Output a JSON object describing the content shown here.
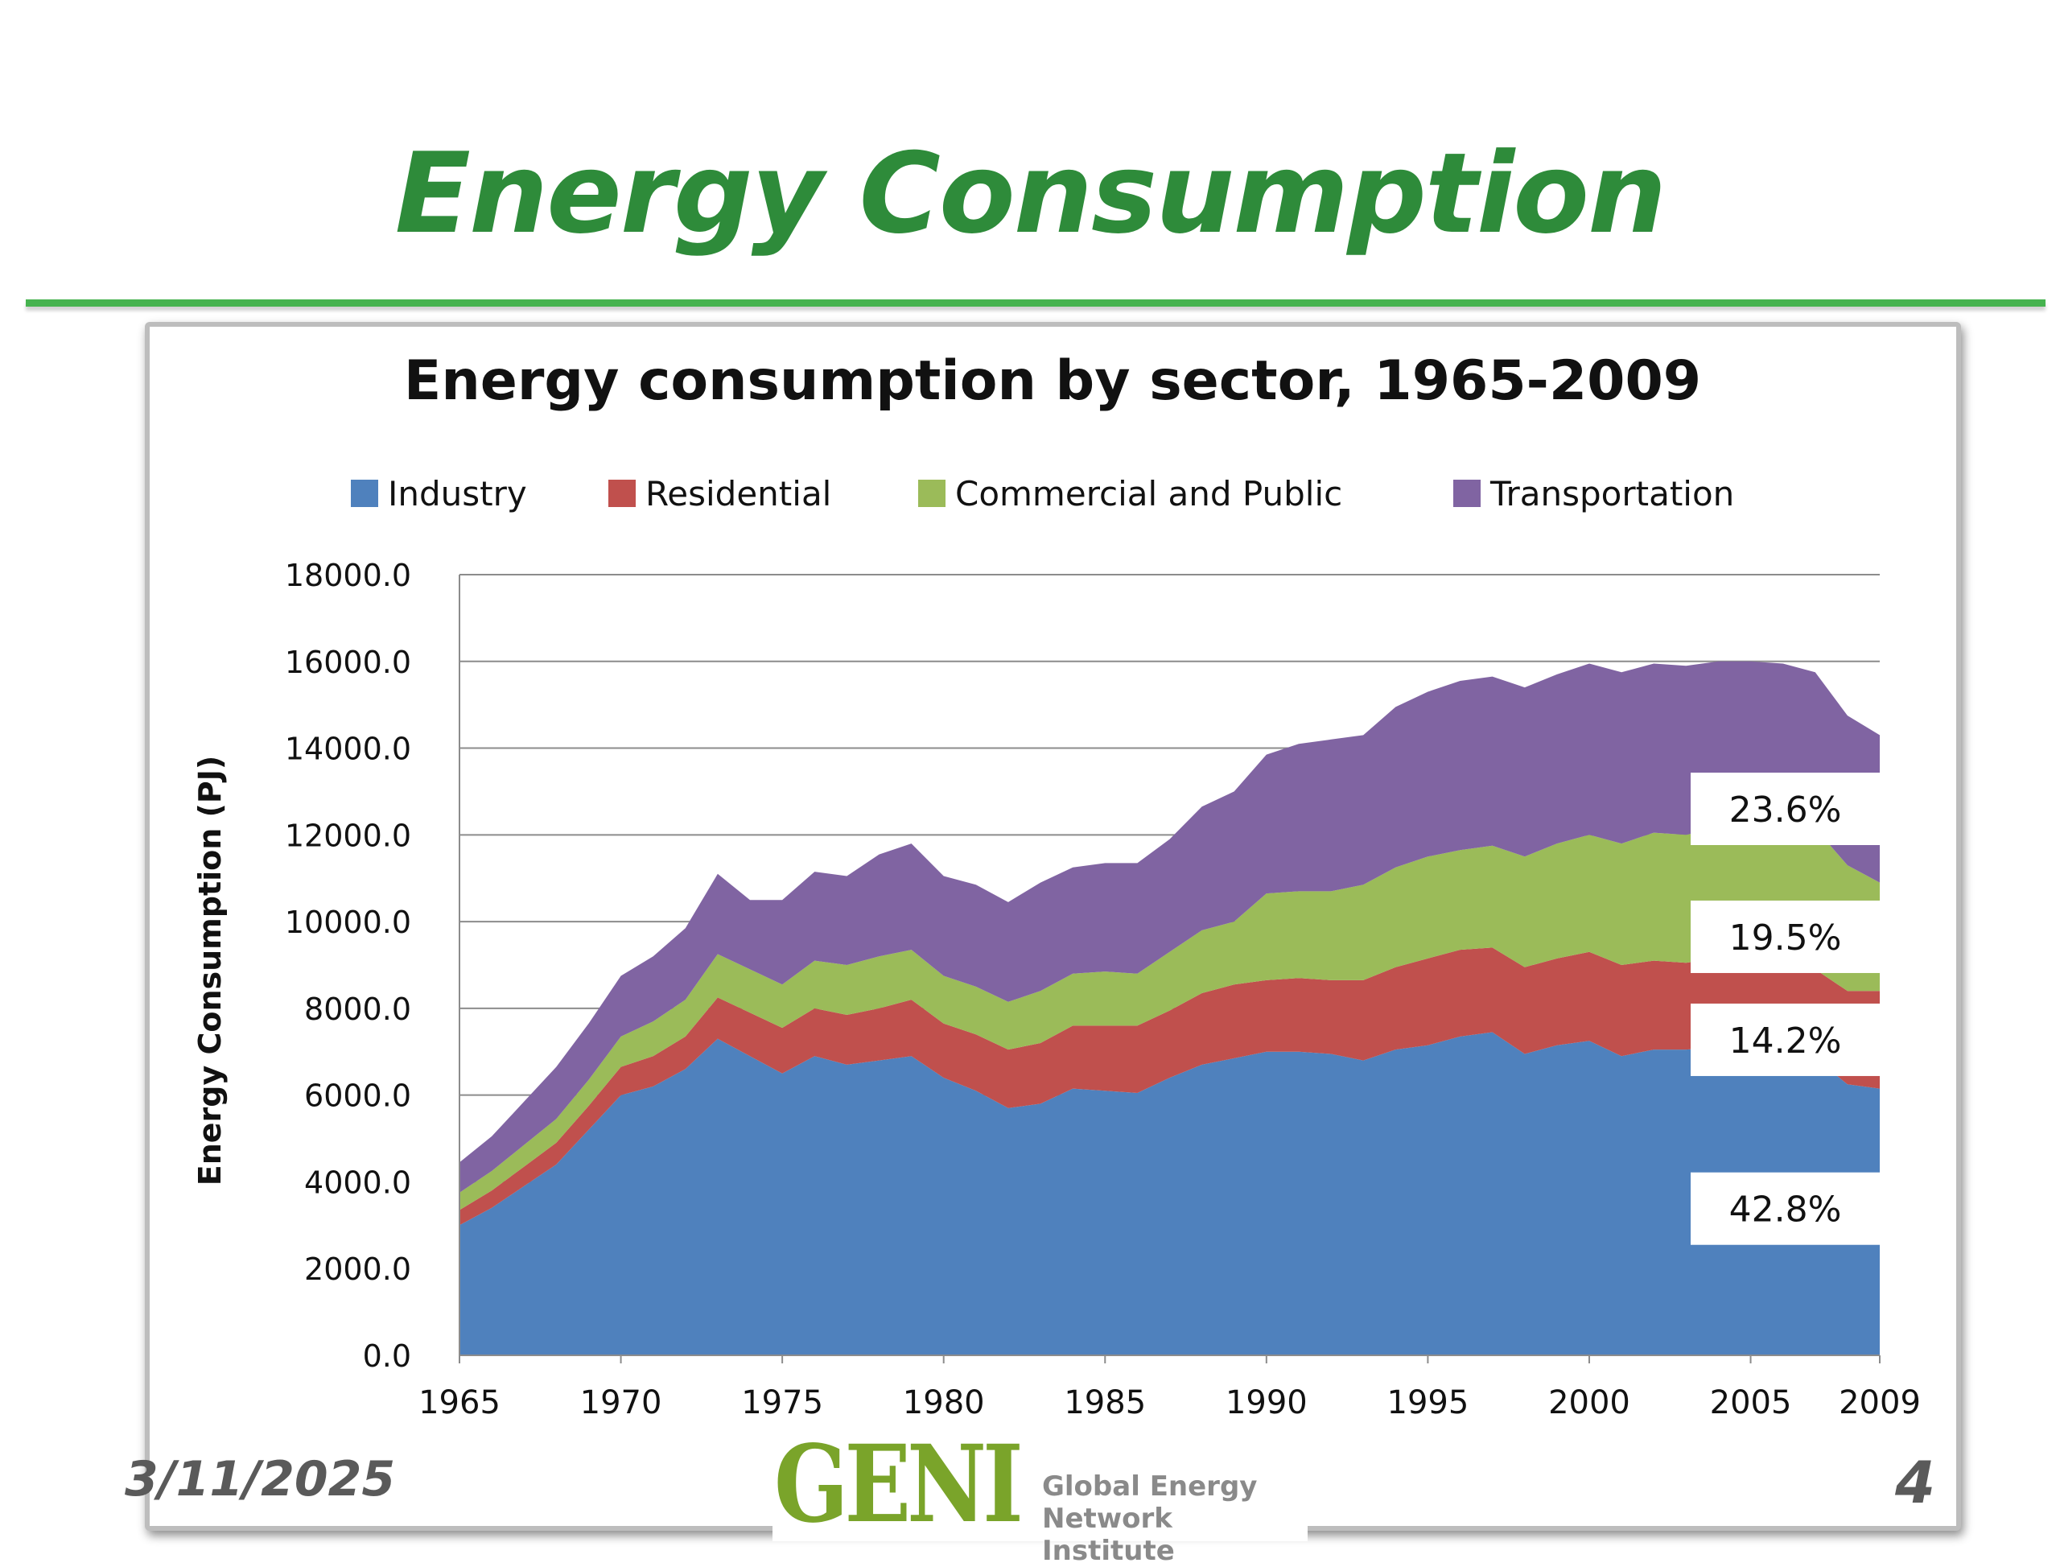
{
  "slide": {
    "title": "Energy Consumption",
    "date": "3/11/2025",
    "page": "4",
    "logo": {
      "mark": "GENI",
      "line1": "Global Energy",
      "line2": "Network Institute"
    }
  },
  "colors": {
    "title": "#2e8b3a",
    "rule": "#46b34f",
    "industry": "#4f81bd",
    "residential": "#c0504d",
    "commercial": "#9bbb59",
    "transportation": "#8064a2"
  },
  "chart_data": {
    "type": "area",
    "stacked": true,
    "title": "Energy consumption by sector, 1965-2009",
    "ylabel": "Energy Consumption (PJ)",
    "xlabel": "",
    "ylim": [
      0,
      18000
    ],
    "yticks": [
      "0.0",
      "2000.0",
      "4000.0",
      "6000.0",
      "8000.0",
      "10000.0",
      "12000.0",
      "14000.0",
      "16000.0",
      "18000.0"
    ],
    "xticks": [
      "1965",
      "1970",
      "1975",
      "1980",
      "1985",
      "1990",
      "1995",
      "2000",
      "2005",
      "2009"
    ],
    "grid": true,
    "legend_position": "top",
    "x": [
      1965,
      1966,
      1967,
      1968,
      1969,
      1970,
      1971,
      1972,
      1973,
      1974,
      1975,
      1976,
      1977,
      1978,
      1979,
      1980,
      1981,
      1982,
      1983,
      1984,
      1985,
      1986,
      1987,
      1988,
      1989,
      1990,
      1991,
      1992,
      1993,
      1994,
      1995,
      1996,
      1997,
      1998,
      1999,
      2000,
      2001,
      2002,
      2003,
      2004,
      2005,
      2006,
      2007,
      2008,
      2009
    ],
    "series": [
      {
        "name": "Industry",
        "values": [
          3000,
          3400,
          3900,
          4400,
          5200,
          6000,
          6200,
          6600,
          7300,
          6900,
          6500,
          6900,
          6700,
          6800,
          6900,
          6400,
          6100,
          5700,
          5800,
          6150,
          6100,
          6050,
          6400,
          6700,
          6850,
          7000,
          7000,
          6950,
          6800,
          7050,
          7150,
          7350,
          7450,
          6950,
          7150,
          7250,
          6900,
          7050,
          7050,
          7100,
          7150,
          7050,
          6850,
          6250,
          6150
        ]
      },
      {
        "name": "Residential",
        "values": [
          350,
          400,
          450,
          500,
          550,
          650,
          700,
          750,
          950,
          1000,
          1050,
          1100,
          1150,
          1200,
          1300,
          1250,
          1300,
          1350,
          1400,
          1450,
          1500,
          1550,
          1550,
          1650,
          1700,
          1650,
          1700,
          1700,
          1850,
          1900,
          2000,
          2000,
          1950,
          2000,
          2000,
          2050,
          2100,
          2050,
          2000,
          2050,
          2000,
          2050,
          2050,
          2150,
          2250
        ]
      },
      {
        "name": "Commercial and Public",
        "values": [
          400,
          450,
          500,
          550,
          600,
          700,
          800,
          850,
          1000,
          1000,
          1000,
          1100,
          1150,
          1200,
          1150,
          1100,
          1100,
          1100,
          1200,
          1200,
          1250,
          1200,
          1350,
          1450,
          1450,
          2000,
          2000,
          2050,
          2200,
          2300,
          2350,
          2300,
          2350,
          2550,
          2650,
          2700,
          2800,
          2950,
          2950,
          3000,
          3050,
          3150,
          3250,
          2900,
          2500
        ]
      },
      {
        "name": "Transportation",
        "values": [
          700,
          800,
          1000,
          1200,
          1300,
          1400,
          1500,
          1650,
          1850,
          1600,
          1950,
          2050,
          2050,
          2350,
          2450,
          2300,
          2350,
          2300,
          2500,
          2450,
          2500,
          2550,
          2600,
          2850,
          3000,
          3200,
          3400,
          3500,
          3450,
          3700,
          3800,
          3900,
          3900,
          3900,
          3900,
          3950,
          3950,
          3900,
          3900,
          3850,
          3800,
          3700,
          3600,
          3450,
          3400
        ]
      }
    ],
    "annotations": [
      {
        "text": "42.8%",
        "series": "Industry"
      },
      {
        "text": "14.2%",
        "series": "Residential"
      },
      {
        "text": "19.5%",
        "series": "Commercial and Public"
      },
      {
        "text": "23.6%",
        "series": "Transportation"
      }
    ]
  }
}
